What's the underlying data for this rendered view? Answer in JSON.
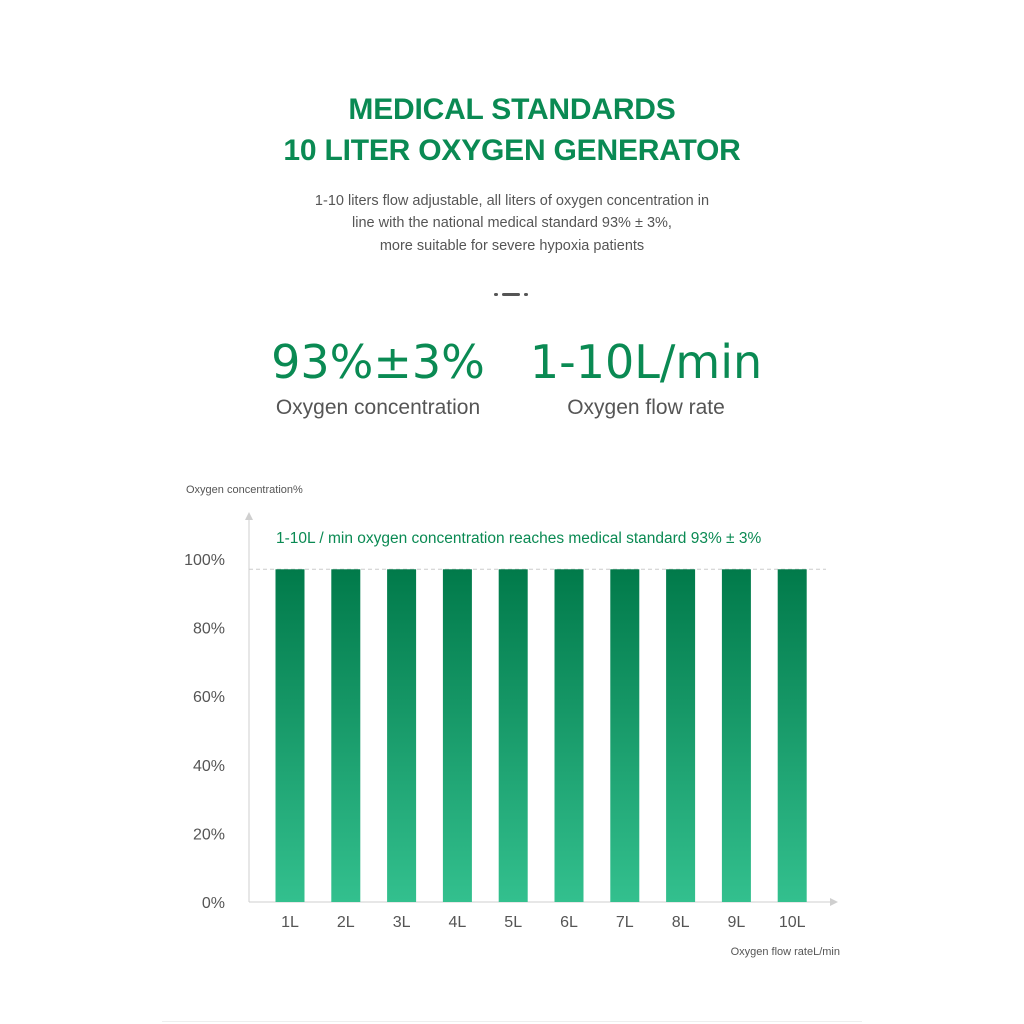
{
  "header": {
    "title_line1": "MEDICAL STANDARDS",
    "title_line2": "10 LITER OXYGEN GENERATOR",
    "desc_line1": "1-10 liters flow adjustable, all liters of oxygen concentration in",
    "desc_line2": "line with the national medical standard 93% ± 3%,",
    "desc_line3": "more suitable for severe hypoxia patients"
  },
  "stats": [
    {
      "value": "93%±3%",
      "label": "Oxygen concentration"
    },
    {
      "value": "1-10L/min",
      "label": "Oxygen flow rate"
    }
  ],
  "colors": {
    "brand": "#0a8a53",
    "bar_top": "#017a4a",
    "bar_bottom": "#33c08e",
    "text_gray": "#555555"
  },
  "chart_data": {
    "type": "bar",
    "ylabel": "Oxygen concentration%",
    "xlabel": "Oxygen flow rateL/min",
    "annotation": "1-10L / min oxygen concentration reaches medical standard 93% ± 3%",
    "categories": [
      "1L",
      "2L",
      "3L",
      "4L",
      "5L",
      "6L",
      "7L",
      "8L",
      "9L",
      "10L"
    ],
    "values": [
      97,
      97,
      97,
      97,
      97,
      97,
      97,
      97,
      97,
      97
    ],
    "reference_line": 97,
    "yticks": [
      "0%",
      "20%",
      "40%",
      "60%",
      "80%",
      "100%"
    ],
    "ylim": [
      0,
      100
    ],
    "grid": false,
    "legend": "none"
  }
}
